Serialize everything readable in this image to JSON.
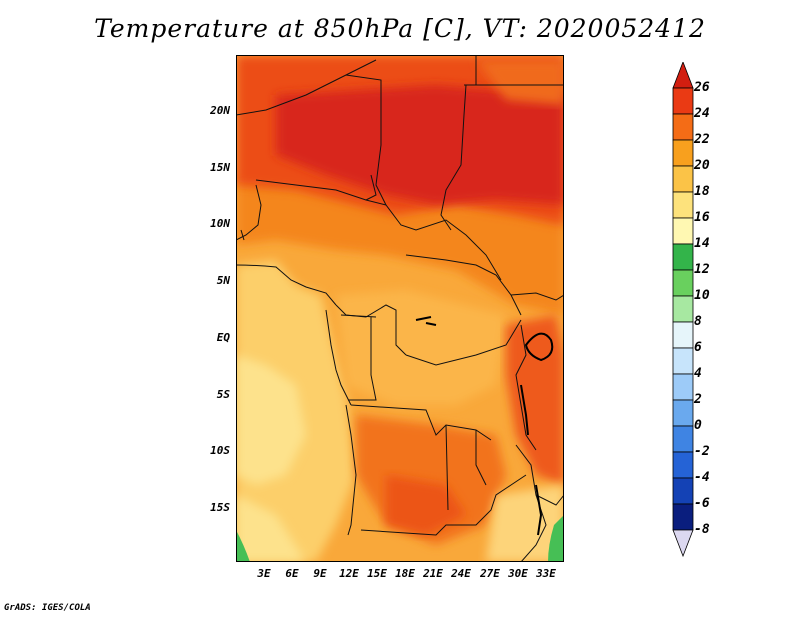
{
  "title": "Temperature at 850hPa [C], VT: 2020052412",
  "credit": "GrADS: IGES/COLA",
  "map": {
    "lat_labels": [
      "20N",
      "15N",
      "10N",
      "5N",
      "EQ",
      "5S",
      "10S",
      "15S"
    ],
    "lon_labels": [
      "3E",
      "6E",
      "9E",
      "12E",
      "15E",
      "18E",
      "21E",
      "24E",
      "27E",
      "30E",
      "33E"
    ]
  },
  "colorbar": {
    "labels": [
      "26",
      "24",
      "22",
      "20",
      "18",
      "16",
      "14",
      "12",
      "10",
      "8",
      "6",
      "4",
      "2",
      "0",
      "-2",
      "-4",
      "-6",
      "-8"
    ],
    "colors": [
      "#d21e10",
      "#ea3a14",
      "#f46c16",
      "#f8a01e",
      "#fbc347",
      "#fde27c",
      "#fff8b2",
      "#33b44a",
      "#69d05e",
      "#a7e8a1",
      "#e6f5fa",
      "#c7e4fb",
      "#9dcbf8",
      "#6aa9ee",
      "#3f84e3",
      "#2563d6",
      "#1442b5",
      "#0a1e7e",
      "#dcd8f0"
    ]
  }
}
